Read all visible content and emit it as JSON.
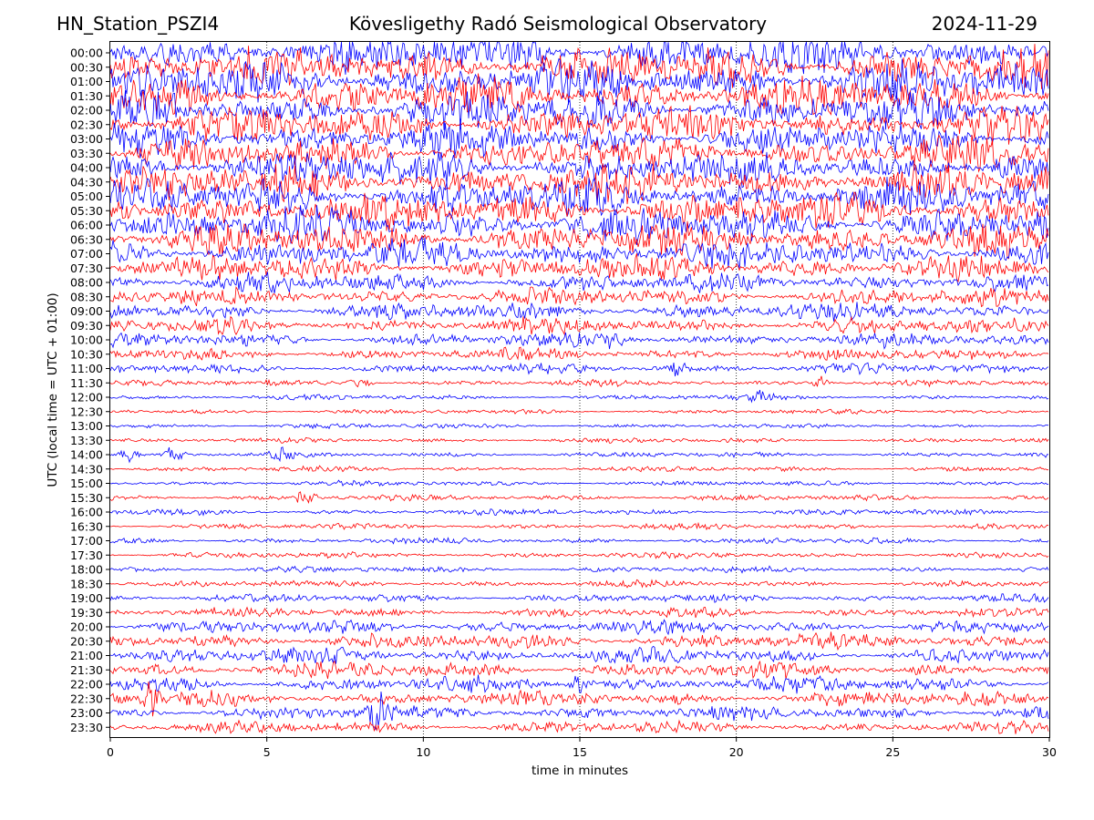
{
  "header": {
    "station": "HN_Station_PSZI4",
    "observatory": "Kövesligethy Radó Seismological Observatory",
    "date": "2024-11-29"
  },
  "chart_data": {
    "type": "line",
    "subtype": "helicorder",
    "xlabel": "time in minutes",
    "ylabel": "UTC (local time = UTC + 01:00)",
    "xlim": [
      0,
      30
    ],
    "xticks": [
      0,
      5,
      10,
      15,
      20,
      25,
      30
    ],
    "vertical_grid": "dotted at each x tick",
    "row_labels": [
      "00:00",
      "00:30",
      "01:00",
      "01:30",
      "02:00",
      "02:30",
      "03:00",
      "03:30",
      "04:00",
      "04:30",
      "05:00",
      "05:30",
      "06:00",
      "06:30",
      "07:00",
      "07:30",
      "08:00",
      "08:30",
      "09:00",
      "09:30",
      "10:00",
      "10:30",
      "11:00",
      "11:30",
      "12:00",
      "12:30",
      "13:00",
      "13:30",
      "14:00",
      "14:30",
      "15:00",
      "15:30",
      "16:00",
      "16:30",
      "17:00",
      "17:30",
      "18:00",
      "18:30",
      "19:00",
      "19:30",
      "20:00",
      "20:30",
      "21:00",
      "21:30",
      "22:00",
      "22:30",
      "23:00",
      "23:30"
    ],
    "trace_colors": [
      "#0000ff",
      "#ff0000"
    ],
    "row_activity": [
      1.0,
      1.0,
      1.0,
      0.95,
      0.9,
      0.85,
      0.8,
      0.8,
      0.85,
      0.9,
      0.9,
      0.9,
      0.85,
      0.8,
      0.7,
      0.6,
      0.45,
      0.4,
      0.4,
      0.35,
      0.3,
      0.25,
      0.2,
      0.1,
      0.08,
      0.07,
      0.07,
      0.07,
      0.08,
      0.08,
      0.08,
      0.1,
      0.1,
      0.1,
      0.1,
      0.1,
      0.1,
      0.12,
      0.15,
      0.2,
      0.3,
      0.35,
      0.35,
      0.35,
      0.35,
      0.35,
      0.3,
      0.25
    ],
    "events": [
      {
        "row": 22,
        "minute": 18.1,
        "amp": 0.35
      },
      {
        "row": 20,
        "minute": 16.0,
        "amp": 0.3
      },
      {
        "row": 28,
        "minute": 0.6,
        "amp": 0.3
      },
      {
        "row": 28,
        "minute": 2.0,
        "amp": 0.4
      },
      {
        "row": 28,
        "minute": 5.5,
        "amp": 0.3
      },
      {
        "row": 23,
        "minute": 8.0,
        "amp": 0.3
      },
      {
        "row": 23,
        "minute": 22.7,
        "amp": 0.3
      },
      {
        "row": 24,
        "minute": 20.8,
        "amp": 0.25
      },
      {
        "row": 45,
        "minute": 1.3,
        "amp": 0.8
      },
      {
        "row": 46,
        "minute": 8.6,
        "amp": 0.8
      },
      {
        "row": 44,
        "minute": 15.0,
        "amp": 0.4
      },
      {
        "row": 31,
        "minute": 6.2,
        "amp": 0.4
      }
    ]
  }
}
